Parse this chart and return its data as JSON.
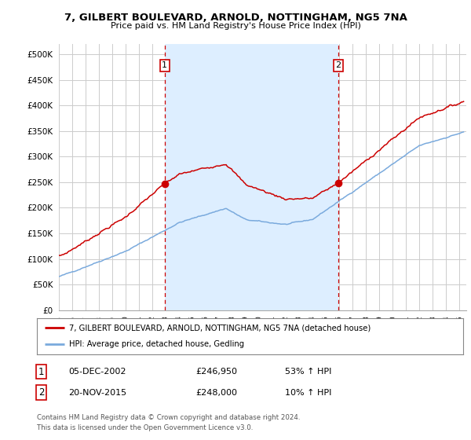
{
  "title": "7, GILBERT BOULEVARD, ARNOLD, NOTTINGHAM, NG5 7NA",
  "subtitle": "Price paid vs. HM Land Registry's House Price Index (HPI)",
  "ylabel_ticks": [
    "£0",
    "£50K",
    "£100K",
    "£150K",
    "£200K",
    "£250K",
    "£300K",
    "£350K",
    "£400K",
    "£450K",
    "£500K"
  ],
  "ytick_values": [
    0,
    50000,
    100000,
    150000,
    200000,
    250000,
    300000,
    350000,
    400000,
    450000,
    500000
  ],
  "ylim": [
    0,
    520000
  ],
  "xlim_start": 1995.0,
  "xlim_end": 2025.5,
  "marker1_x": 2002.92,
  "marker1_y": 246950,
  "marker2_x": 2015.9,
  "marker2_y": 248000,
  "marker1_date": "05-DEC-2002",
  "marker1_price": "£246,950",
  "marker1_hpi": "53% ↑ HPI",
  "marker2_date": "20-NOV-2015",
  "marker2_price": "£248,000",
  "marker2_hpi": "10% ↑ HPI",
  "legend_line1": "7, GILBERT BOULEVARD, ARNOLD, NOTTINGHAM, NG5 7NA (detached house)",
  "legend_line2": "HPI: Average price, detached house, Gedling",
  "footer1": "Contains HM Land Registry data © Crown copyright and database right 2024.",
  "footer2": "This data is licensed under the Open Government Licence v3.0.",
  "hpi_color": "#7aaadd",
  "sale_color": "#cc0000",
  "shade_color": "#ddeeff",
  "background_color": "#ffffff",
  "grid_color": "#cccccc"
}
